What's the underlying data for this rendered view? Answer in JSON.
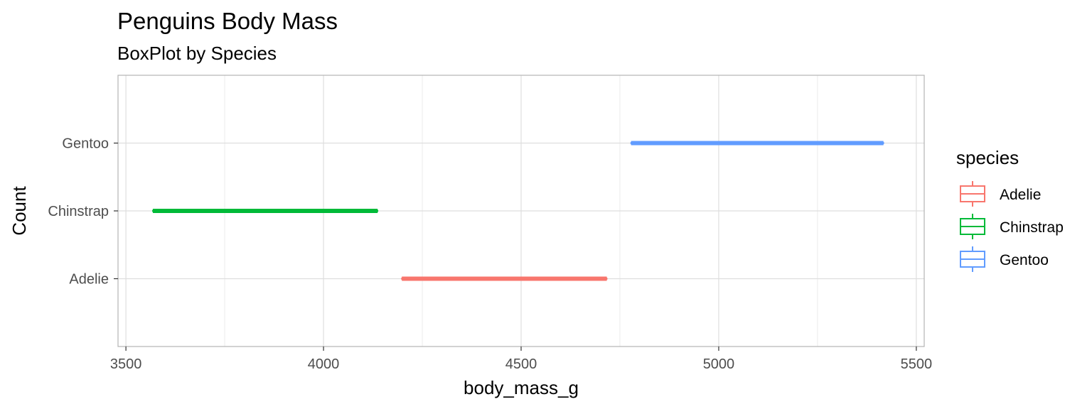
{
  "chart_data": {
    "type": "boxplot",
    "orientation": "horizontal",
    "title": "Penguins Body Mass",
    "subtitle": "BoxPlot by Species",
    "xlabel": "body_mass_g",
    "ylabel": "Count",
    "xlim": [
      3480,
      5520
    ],
    "x_ticks": [
      3500,
      4000,
      4500,
      5000,
      5500
    ],
    "categories": [
      "Adelie",
      "Chinstrap",
      "Gentoo"
    ],
    "series": [
      {
        "name": "Adelie",
        "color": "#F8766D",
        "min": 4200,
        "q1": 4200,
        "median": 4458,
        "q3": 4715,
        "max": 4715
      },
      {
        "name": "Chinstrap",
        "color": "#00BA38",
        "min": 3570,
        "q1": 3570,
        "median": 3852,
        "q3": 4135,
        "max": 4135
      },
      {
        "name": "Gentoo",
        "color": "#619CFF",
        "min": 4780,
        "q1": 4780,
        "median": 5098,
        "q3": 5415,
        "max": 5415
      }
    ],
    "grid": true,
    "legend": {
      "title": "species",
      "position": "right"
    }
  }
}
